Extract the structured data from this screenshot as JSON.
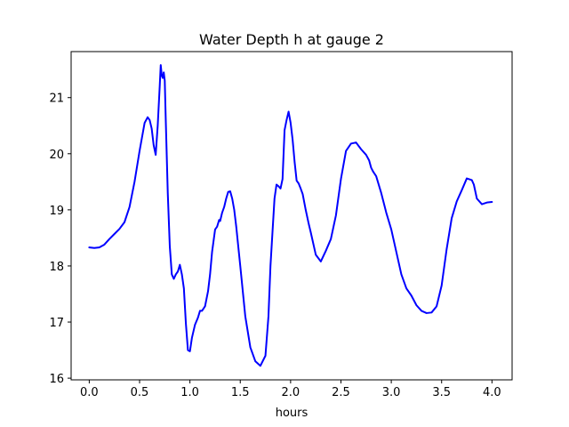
{
  "chart_data": {
    "type": "line",
    "title": "Water Depth h at gauge 2",
    "xlabel": "hours",
    "ylabel": "",
    "xlim": [
      -0.18,
      4.2
    ],
    "ylim": [
      15.97,
      21.82
    ],
    "xticks": [
      0.0,
      0.5,
      1.0,
      1.5,
      2.0,
      2.5,
      3.0,
      3.5,
      4.0
    ],
    "xtick_labels": [
      "0.0",
      "0.5",
      "1.0",
      "1.5",
      "2.0",
      "2.5",
      "3.0",
      "3.5",
      "4.0"
    ],
    "yticks": [
      16,
      17,
      18,
      19,
      20,
      21
    ],
    "ytick_labels": [
      "16",
      "17",
      "18",
      "19",
      "20",
      "21"
    ],
    "grid": false,
    "series": [
      {
        "color": "#0000ff",
        "x": [
          0.0,
          0.05,
          0.1,
          0.15,
          0.2,
          0.25,
          0.3,
          0.35,
          0.4,
          0.45,
          0.5,
          0.55,
          0.58,
          0.6,
          0.62,
          0.64,
          0.66,
          0.68,
          0.7,
          0.71,
          0.72,
          0.73,
          0.74,
          0.75,
          0.76,
          0.78,
          0.8,
          0.82,
          0.84,
          0.86,
          0.88,
          0.9,
          0.92,
          0.94,
          0.96,
          0.98,
          1.0,
          1.02,
          1.05,
          1.08,
          1.1,
          1.12,
          1.15,
          1.18,
          1.2,
          1.22,
          1.25,
          1.27,
          1.29,
          1.3,
          1.32,
          1.34,
          1.36,
          1.38,
          1.4,
          1.42,
          1.44,
          1.46,
          1.48,
          1.5,
          1.55,
          1.6,
          1.65,
          1.7,
          1.75,
          1.78,
          1.8,
          1.82,
          1.84,
          1.86,
          1.88,
          1.9,
          1.92,
          1.94,
          1.96,
          1.98,
          2.0,
          2.02,
          2.04,
          2.06,
          2.08,
          2.1,
          2.12,
          2.15,
          2.18,
          2.2,
          2.25,
          2.3,
          2.35,
          2.4,
          2.45,
          2.5,
          2.55,
          2.6,
          2.65,
          2.7,
          2.75,
          2.78,
          2.8,
          2.82,
          2.85,
          2.9,
          2.95,
          3.0,
          3.05,
          3.1,
          3.15,
          3.2,
          3.25,
          3.3,
          3.35,
          3.4,
          3.45,
          3.5,
          3.55,
          3.6,
          3.65,
          3.7,
          3.75,
          3.8,
          3.82,
          3.85,
          3.9,
          3.95,
          4.0
        ],
        "y": [
          18.33,
          18.32,
          18.33,
          18.38,
          18.48,
          18.57,
          18.66,
          18.78,
          19.05,
          19.5,
          20.05,
          20.55,
          20.65,
          20.6,
          20.45,
          20.15,
          19.98,
          20.5,
          21.2,
          21.58,
          21.4,
          21.35,
          21.45,
          21.3,
          20.6,
          19.3,
          18.35,
          17.85,
          17.77,
          17.85,
          17.9,
          18.02,
          17.85,
          17.6,
          16.97,
          16.5,
          16.48,
          16.72,
          16.95,
          17.08,
          17.2,
          17.2,
          17.28,
          17.55,
          17.85,
          18.25,
          18.65,
          18.7,
          18.82,
          18.8,
          18.95,
          19.05,
          19.2,
          19.32,
          19.33,
          19.2,
          19.0,
          18.7,
          18.35,
          18.0,
          17.1,
          16.55,
          16.3,
          16.22,
          16.4,
          17.1,
          18.0,
          18.6,
          19.2,
          19.45,
          19.42,
          19.38,
          19.55,
          20.42,
          20.6,
          20.75,
          20.55,
          20.25,
          19.85,
          19.52,
          19.47,
          19.38,
          19.28,
          19.0,
          18.75,
          18.6,
          18.2,
          18.08,
          18.27,
          18.48,
          18.9,
          19.55,
          20.05,
          20.18,
          20.2,
          20.08,
          19.98,
          19.88,
          19.75,
          19.68,
          19.6,
          19.3,
          18.95,
          18.65,
          18.25,
          17.85,
          17.6,
          17.47,
          17.3,
          17.2,
          17.16,
          17.17,
          17.28,
          17.65,
          18.3,
          18.85,
          19.15,
          19.35,
          19.56,
          19.53,
          19.45,
          19.2,
          19.1,
          19.13,
          19.14
        ]
      }
    ]
  }
}
